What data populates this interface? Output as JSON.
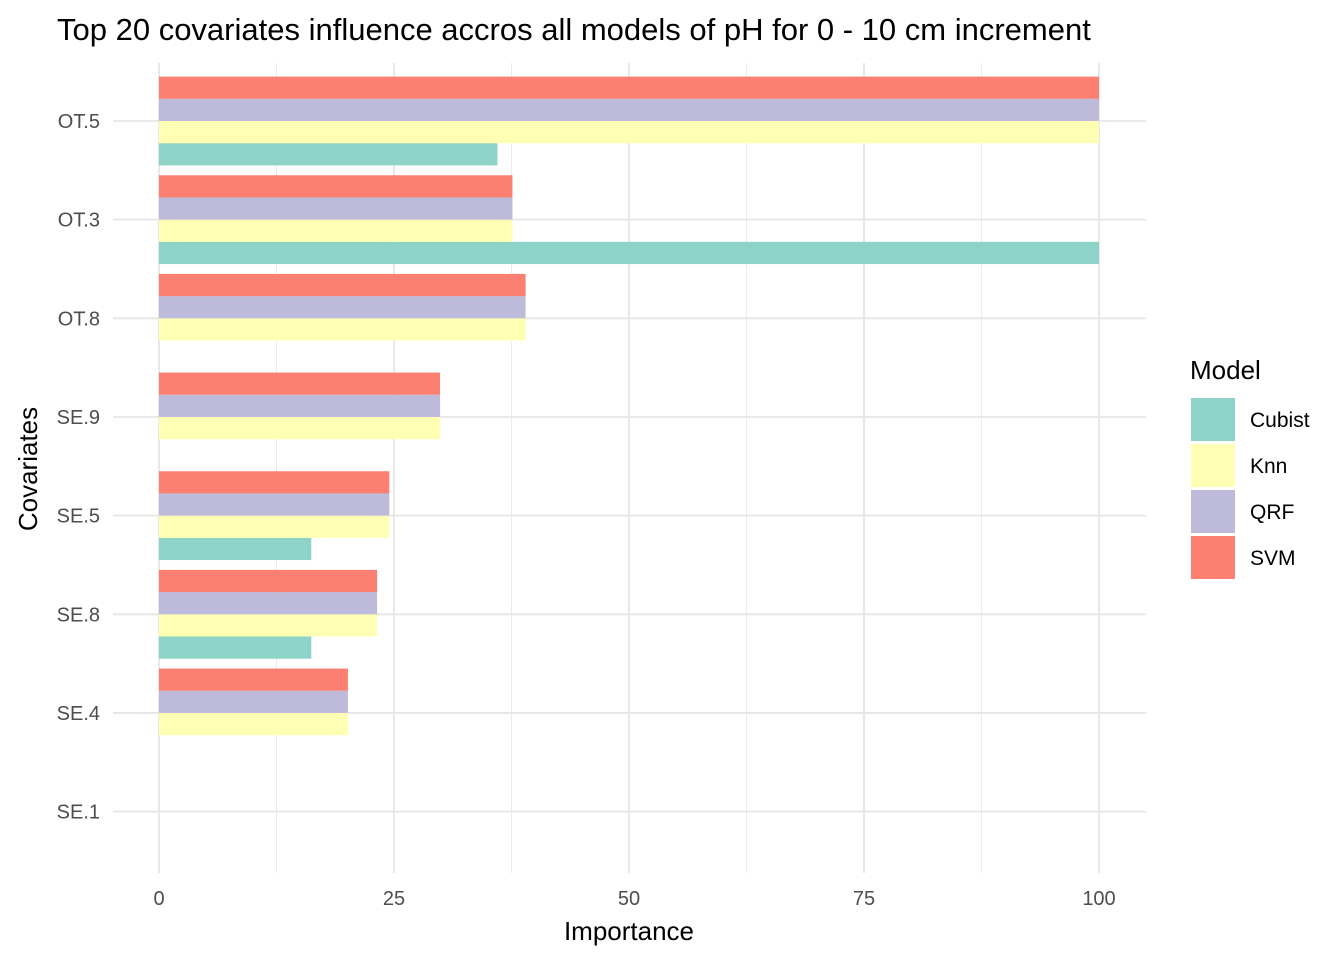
{
  "chart_data": {
    "type": "bar",
    "orientation": "horizontal",
    "title": "Top 20 covariates influence accros all models of pH for 0 - 10 cm increment",
    "xlabel": "Importance",
    "ylabel": "Covariates",
    "xlim": [
      0,
      105
    ],
    "x_ticks": [
      "0",
      "25",
      "50",
      "75",
      "100"
    ],
    "grid": true,
    "legend_title": "Model",
    "legend_position": "right",
    "categories": [
      "OT.5",
      "OT.3",
      "OT.8",
      "SE.9",
      "SE.5",
      "SE.8",
      "SE.4",
      "SE.1"
    ],
    "series": [
      {
        "name": "Cubist",
        "color": "#8DD3C7",
        "values": [
          36.0,
          100.0,
          null,
          null,
          16.2,
          16.2,
          null,
          null
        ]
      },
      {
        "name": "Knn",
        "color": "#FFFFB3",
        "values": [
          100.0,
          37.6,
          39.0,
          29.9,
          24.5,
          23.2,
          20.1,
          null
        ]
      },
      {
        "name": "QRF",
        "color": "#BEBADA",
        "values": [
          100.0,
          37.6,
          39.0,
          29.9,
          24.5,
          23.2,
          20.1,
          null
        ]
      },
      {
        "name": "SVM",
        "color": "#FB8072",
        "values": [
          100.0,
          37.6,
          39.0,
          29.9,
          24.5,
          23.2,
          20.1,
          null
        ]
      }
    ]
  }
}
